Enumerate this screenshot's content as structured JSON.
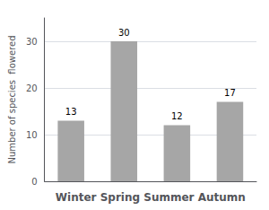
{
  "chart_data": {
    "type": "bar",
    "categories": [
      "Winter",
      "Spring",
      "Summer",
      "Autumn"
    ],
    "values": [
      13,
      30,
      12,
      17
    ],
    "color": "#a6a6a6",
    "xlabel": "Winter Spring Summer Autumn",
    "ylabel": "Number of species  flowered",
    "ylim": [
      0,
      35
    ],
    "yticks": [
      0,
      10,
      20,
      30
    ],
    "grid": true,
    "data_labels": true,
    "tick_labels": "y"
  }
}
